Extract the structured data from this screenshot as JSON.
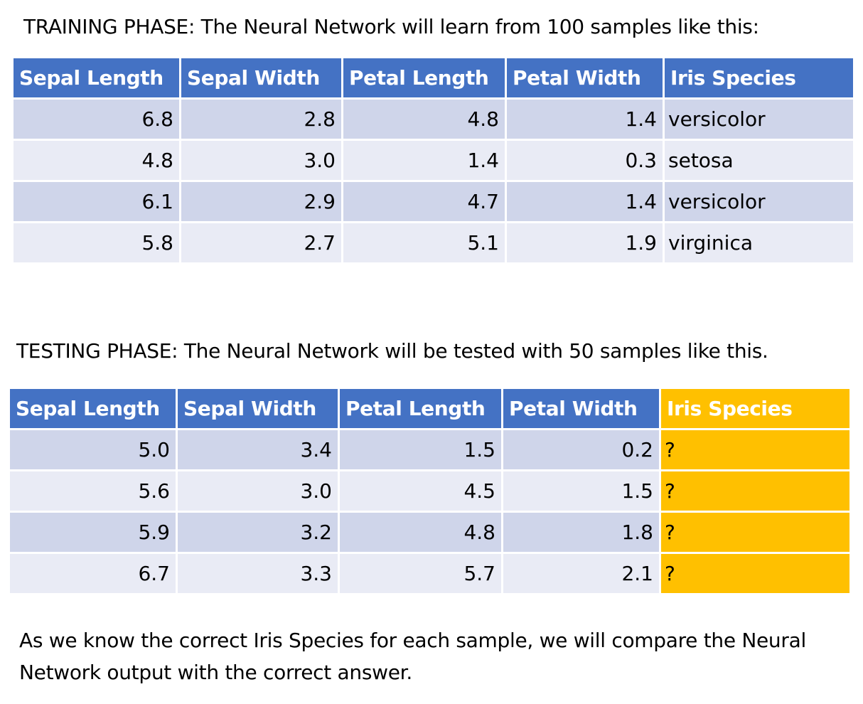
{
  "training": {
    "caption": "TRAINING PHASE: The Neural Network will learn from 100 samples like this:",
    "headers": [
      "Sepal Length",
      "Sepal Width",
      "Petal Length",
      "Petal Width",
      "Iris Species"
    ],
    "rows": [
      [
        "6.8",
        "2.8",
        "4.8",
        "1.4",
        "versicolor"
      ],
      [
        "4.8",
        "3.0",
        "1.4",
        "0.3",
        "setosa"
      ],
      [
        "6.1",
        "2.9",
        "4.7",
        "1.4",
        "versicolor"
      ],
      [
        "5.8",
        "2.7",
        "5.1",
        "1.9",
        "virginica"
      ]
    ]
  },
  "testing": {
    "caption": "TESTING PHASE: The Neural Network will be tested with 50 samples like this.",
    "headers": [
      "Sepal Length",
      "Sepal Width",
      "Petal Length",
      "Petal Width",
      "Iris Species"
    ],
    "rows": [
      [
        "5.0",
        "3.4",
        "1.5",
        "0.2",
        "?"
      ],
      [
        "5.6",
        "3.0",
        "4.5",
        "1.5",
        "?"
      ],
      [
        "5.9",
        "3.2",
        "4.8",
        "1.8",
        "?"
      ],
      [
        "6.7",
        "3.3",
        "5.7",
        "2.1",
        "?"
      ]
    ],
    "unknown_column_color": "#ffc000"
  },
  "footer_note": "As we know the correct Iris Species for each sample, we will compare the Neural Network output with the correct answer.",
  "colors": {
    "header_background": "#4472c4",
    "row_band_dark": "#cfd5ea",
    "row_band_light": "#e9ebf5"
  }
}
